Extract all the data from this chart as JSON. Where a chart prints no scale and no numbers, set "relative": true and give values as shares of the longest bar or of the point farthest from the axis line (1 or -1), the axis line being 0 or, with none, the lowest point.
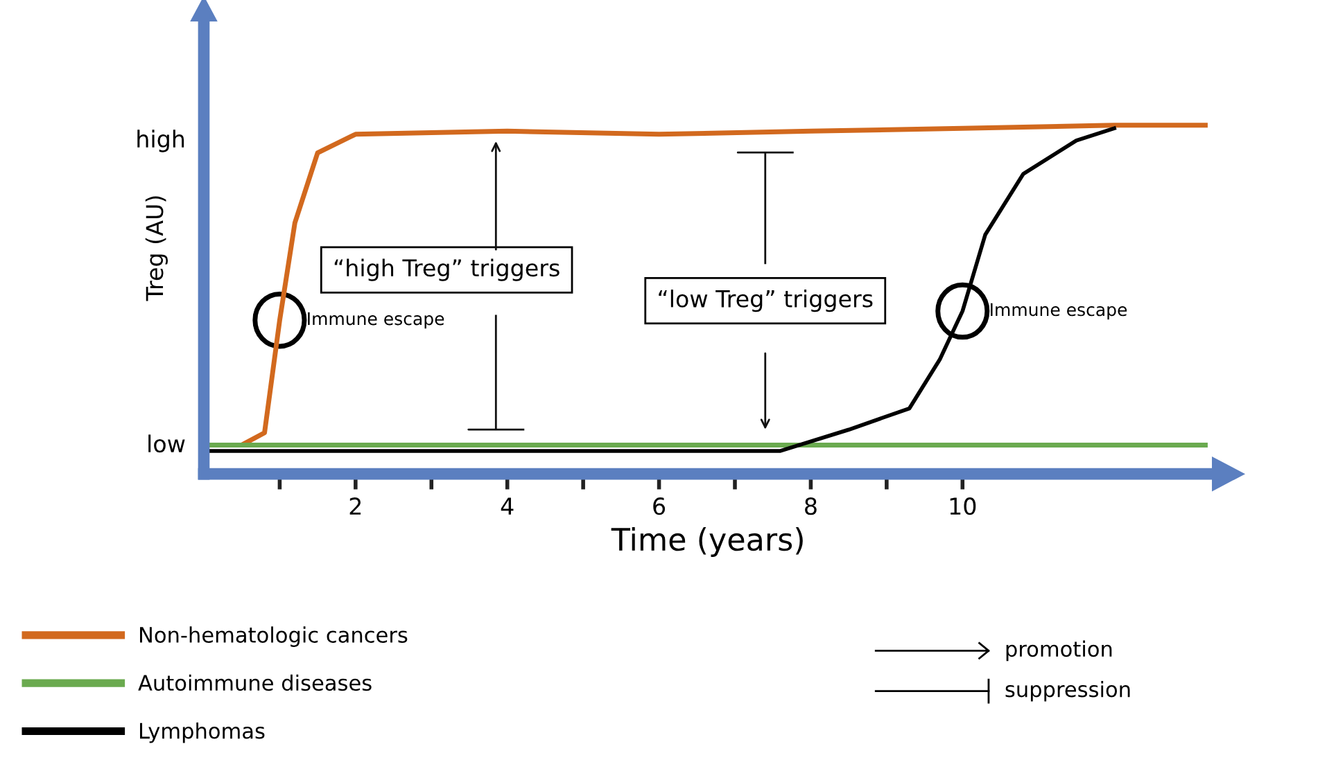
{
  "chart_data": {
    "type": "line",
    "xlabel": "Time (years)",
    "ylabel": "Treg (AU)",
    "xlim": [
      0,
      13.3
    ],
    "relative": true,
    "xticks": [
      {
        "value": 1,
        "label": null
      },
      2,
      {
        "value": 3,
        "label": null
      },
      4,
      {
        "value": 5,
        "label": null
      },
      6,
      {
        "value": 7,
        "label": null
      },
      8,
      {
        "value": 9,
        "label": null
      },
      10
    ],
    "grid": false,
    "legend": "bottom left",
    "line_style": "solid",
    "marker": "none",
    "series": [
      {
        "name": "Non-hematologic cancers",
        "color": "#d2691e",
        "x": [
          0.05,
          0.5,
          0.8,
          1.0,
          1.2,
          1.5,
          2,
          4,
          6,
          8,
          10,
          12,
          13.2
        ],
        "values": [
          0.083,
          0.083,
          0.118,
          0.441,
          0.72,
          0.921,
          0.974,
          0.983,
          0.974,
          0.983,
          0.991,
          1.0,
          1.0
        ]
      },
      {
        "name": "Autoimmune diseases",
        "color": "#6aaa4f",
        "x": [
          0.05,
          13.2
        ],
        "values": [
          0.083,
          0.083
        ]
      },
      {
        "name": "Lymphomas",
        "color": "#000000",
        "x": [
          0.05,
          7.6,
          8.5,
          9.3,
          9.7,
          10,
          10.3,
          10.8,
          11.5,
          12
        ],
        "values": [
          0.066,
          0.066,
          0.127,
          0.188,
          0.328,
          0.467,
          0.686,
          0.86,
          0.956,
          0.991
        ]
      }
    ],
    "annotations": [
      "“high Treg” triggers",
      "“low Treg” triggers",
      {
        "text": "Immune escape",
        "x": 1,
        "y": 0.441
      },
      {
        "text": "Immune escape",
        "x": 10,
        "y": 0.467
      },
      "promotion",
      "suppression",
      "low",
      "high"
    ]
  }
}
